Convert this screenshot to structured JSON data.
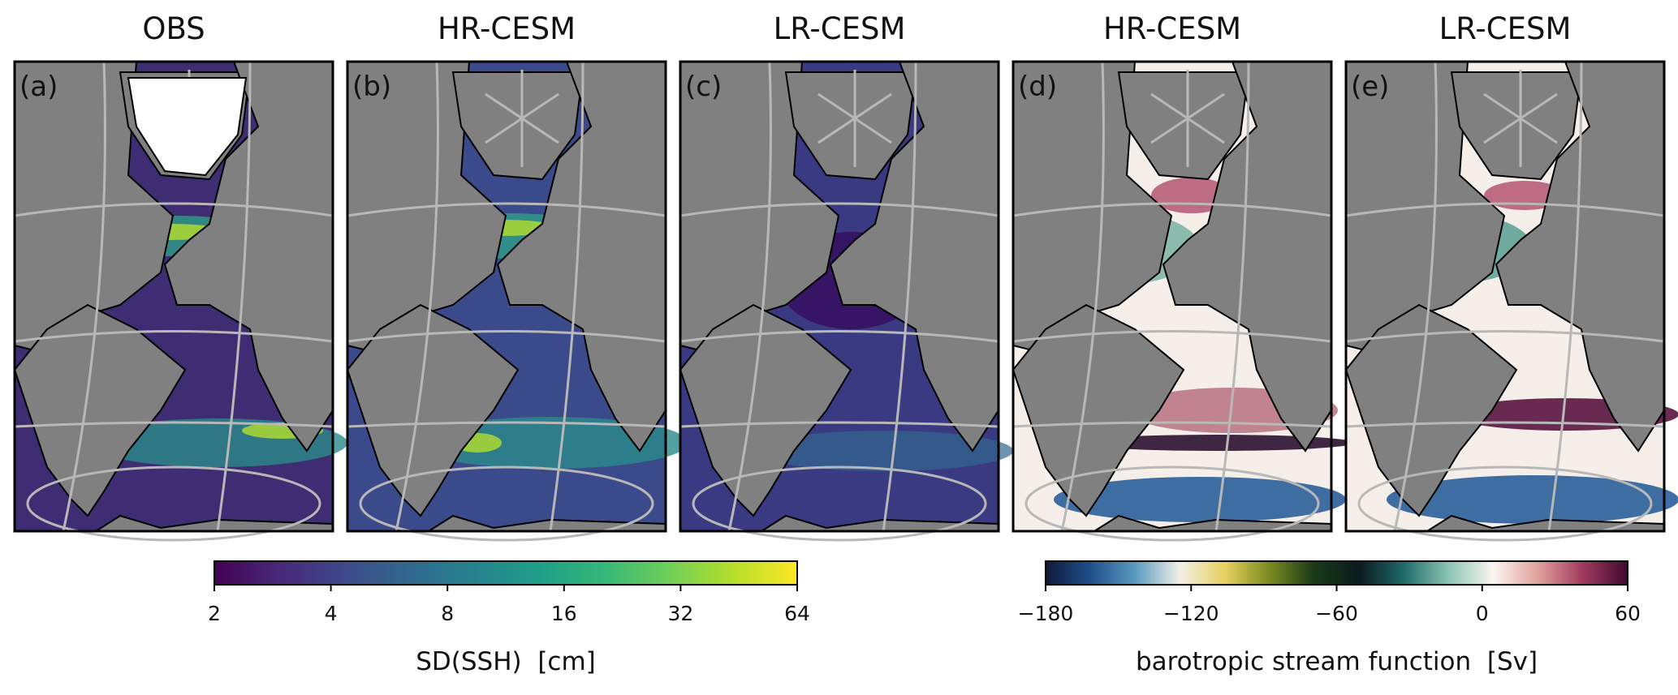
{
  "panels": [
    {
      "title": "OBS",
      "label": "(a)"
    },
    {
      "title": "HR-CESM",
      "label": "(b)"
    },
    {
      "title": "LR-CESM",
      "label": "(c)"
    },
    {
      "title": "HR-CESM",
      "label": "(d)"
    },
    {
      "title": "LR-CESM",
      "label": "(e)"
    }
  ],
  "colorbars": [
    {
      "label": "SD(SSH)  [cm]",
      "lim": [
        2,
        64
      ],
      "ticks": [
        2,
        4,
        8,
        16,
        32,
        64
      ],
      "log_scale": true,
      "colors": [
        "#440154",
        "#482878",
        "#3e4989",
        "#31688e",
        "#26828e",
        "#1f9e89",
        "#35b779",
        "#6ece58",
        "#b5de2b",
        "#fde725"
      ]
    },
    {
      "label": "barotropic stream function  [Sv]",
      "lim": [
        -180,
        60
      ],
      "ticks": [
        {
          "value": -180,
          "label": "−180"
        },
        {
          "value": -120,
          "label": "−120"
        },
        {
          "value": -60,
          "label": "−60"
        },
        0,
        60
      ],
      "log_scale": false,
      "colors": [
        "#10193d",
        "#1f4f8a",
        "#5a9ac0",
        "#f2f0e6",
        "#e8d060",
        "#7a8a20",
        "#1a3a18",
        "#0b1a1e",
        "#1f6a6a",
        "#8cc4b4",
        "#fbf5f0",
        "#e0a09a",
        "#a03a5e",
        "#40082e"
      ]
    }
  ]
}
